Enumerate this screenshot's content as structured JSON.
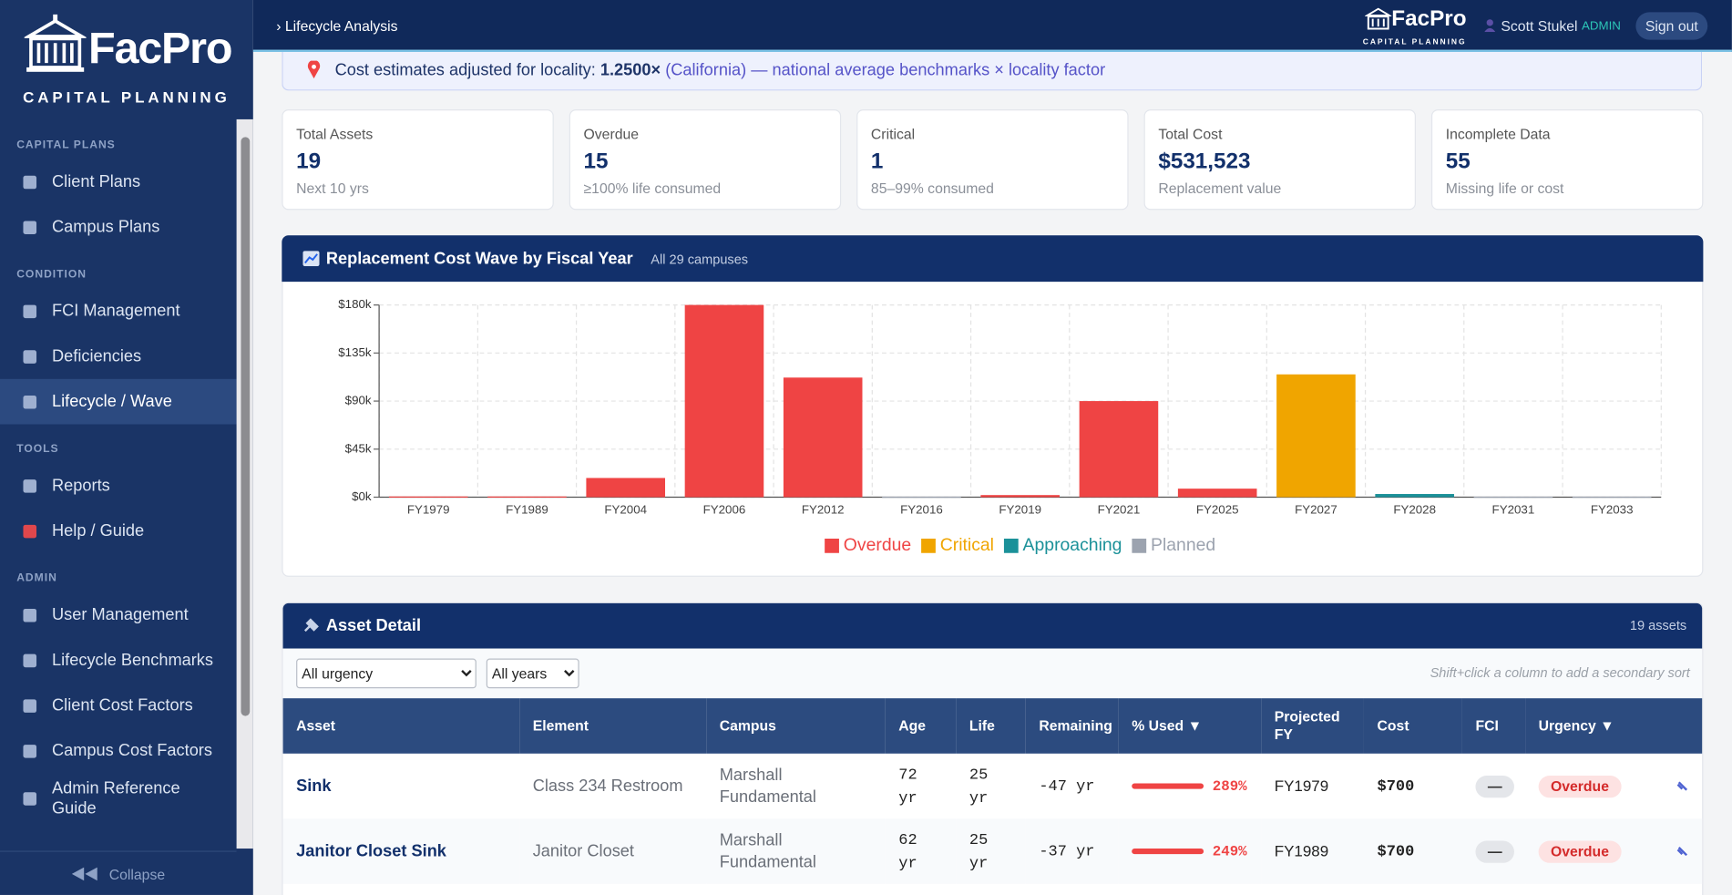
{
  "sidebar": {
    "brand": "FacPro",
    "tagline": "CAPITAL PLANNING",
    "sections": [
      {
        "heading": "CAPITAL PLANS",
        "items": [
          "Client Plans",
          "Campus Plans"
        ]
      },
      {
        "heading": "CONDITION",
        "items": [
          "FCI Management",
          "Deficiencies",
          "Lifecycle / Wave"
        ]
      },
      {
        "heading": "TOOLS",
        "items": [
          "Reports",
          "Help / Guide"
        ]
      },
      {
        "heading": "ADMIN",
        "items": [
          "User Management",
          "Lifecycle Benchmarks",
          "Client Cost Factors",
          "Campus Cost Factors",
          "Admin Reference Guide"
        ]
      }
    ],
    "collapse": "Collapse"
  },
  "header": {
    "breadcrumb": "› Lifecycle Analysis",
    "brand": "FacPro",
    "tagline": "CAPITAL PLANNING",
    "user": "Scott Stukel",
    "role": "ADMIN",
    "sign_out": "Sign out"
  },
  "notice": {
    "text": "Cost estimates adjusted for locality:",
    "factor": "1.2500×",
    "detail": "(California) — national average benchmarks × locality factor"
  },
  "stats": [
    {
      "label": "Total Assets",
      "value": "19",
      "note": "Next 10 yrs"
    },
    {
      "label": "Overdue",
      "value": "15",
      "note": "≥100% life consumed"
    },
    {
      "label": "Critical",
      "value": "1",
      "note": "85–99% consumed"
    },
    {
      "label": "Total Cost",
      "value": "$531,523",
      "note": "Replacement value"
    },
    {
      "label": "Incomplete Data",
      "value": "55",
      "note": "Missing life or cost"
    }
  ],
  "chart_data": {
    "type": "bar",
    "stacked": true,
    "title": "Replacement Cost Wave by Fiscal Year",
    "subtitle": "All 29 campuses",
    "categories": [
      "FY1979",
      "FY1989",
      "FY2004",
      "FY2006",
      "FY2012",
      "FY2016",
      "FY2019",
      "FY2021",
      "FY2025",
      "FY2027",
      "FY2028",
      "FY2031",
      "FY2033"
    ],
    "series": [
      {
        "name": "Overdue",
        "color": "#ef4444",
        "values": [
          700,
          700,
          18000,
          180000,
          112000,
          null,
          2000,
          90000,
          8000,
          null,
          null,
          null,
          null
        ]
      },
      {
        "name": "Critical",
        "color": "#f0a500",
        "values": [
          null,
          null,
          null,
          null,
          null,
          null,
          null,
          null,
          null,
          115000,
          null,
          null,
          null
        ]
      },
      {
        "name": "Approaching",
        "color": "#1b9199",
        "values": [
          null,
          null,
          null,
          null,
          null,
          null,
          null,
          null,
          null,
          null,
          3000,
          null,
          null
        ]
      },
      {
        "name": "Planned",
        "color": "#9ca3af",
        "values": [
          null,
          null,
          null,
          null,
          null,
          500,
          null,
          null,
          null,
          null,
          null,
          500,
          500
        ]
      }
    ],
    "ylim": [
      0,
      180000
    ],
    "yticks": [
      {
        "value": 0,
        "label": "$0k"
      },
      {
        "value": 45000,
        "label": "$45k"
      },
      {
        "value": 90000,
        "label": "$90k"
      },
      {
        "value": 135000,
        "label": "$135k"
      },
      {
        "value": 180000,
        "label": "$180k"
      }
    ],
    "grid": true,
    "legend": "bottom"
  },
  "asset_detail": {
    "title": "Asset Detail",
    "count": "19 assets",
    "filters": [
      "All urgency",
      "All years"
    ],
    "hint": "Shift+click a column to add a secondary sort",
    "columns": [
      "Asset",
      "Element",
      "Campus",
      "Age",
      "Life",
      "Remaining",
      "% Used ▼",
      "Projected FY",
      "Cost",
      "FCI",
      "Urgency ▼"
    ],
    "rows": [
      [
        "Sink",
        "Class 234 Restroom",
        "Marshall Fundamental",
        "72 yr",
        "25 yr",
        "-47 yr",
        "289%",
        "FY1979",
        "$700",
        "—",
        "Overdue"
      ],
      [
        "Janitor Closet Sink",
        "Janitor Closet",
        "Marshall Fundamental",
        "62 yr",
        "25 yr",
        "-37 yr",
        "249%",
        "FY1989",
        "$700",
        "—",
        "Overdue"
      ]
    ]
  }
}
